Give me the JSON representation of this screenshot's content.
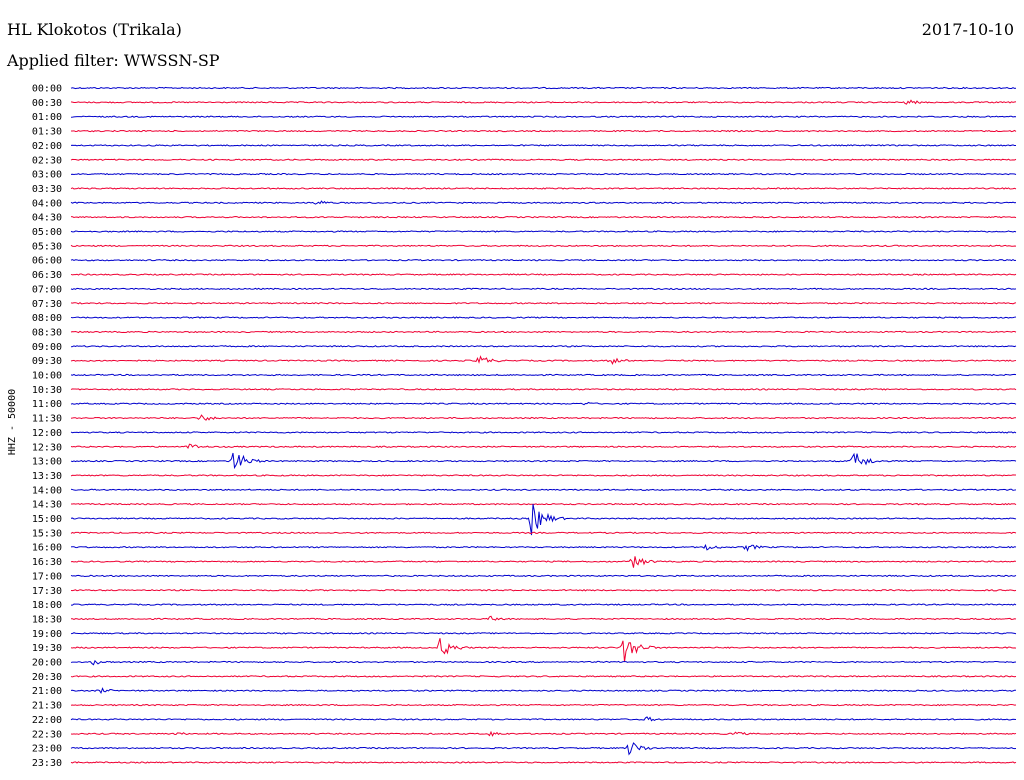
{
  "header": {
    "station": "HL Klokotos (Trikala)",
    "date": "2017-10-10",
    "filter": "Applied filter: WWSSN-SP"
  },
  "chart_data": {
    "type": "line",
    "title": "HL Klokotos (Trikala)",
    "ylabel": "HHZ - 50000",
    "colors": {
      "blue": "#0000cc",
      "red": "#ee0033"
    },
    "row_labels": [
      "00:00",
      "00:30",
      "01:00",
      "01:30",
      "02:00",
      "02:30",
      "03:00",
      "03:30",
      "04:00",
      "04:30",
      "05:00",
      "05:30",
      "06:00",
      "06:30",
      "07:00",
      "07:30",
      "08:00",
      "08:30",
      "09:00",
      "09:30",
      "10:00",
      "10:30",
      "11:00",
      "11:30",
      "12:00",
      "12:30",
      "13:00",
      "13:30",
      "14:00",
      "14:30",
      "15:00",
      "15:30",
      "16:00",
      "16:30",
      "17:00",
      "17:30",
      "18:00",
      "18:30",
      "19:00",
      "19:30",
      "20:00",
      "20:30",
      "21:00",
      "21:30",
      "22:00",
      "22:30",
      "23:00",
      "23:30"
    ],
    "row_colors": [
      "blue",
      "red",
      "blue",
      "red",
      "blue",
      "red",
      "blue",
      "red",
      "blue",
      "red",
      "blue",
      "red",
      "blue",
      "red",
      "blue",
      "red",
      "blue",
      "red",
      "blue",
      "red",
      "blue",
      "red",
      "blue",
      "red",
      "blue",
      "red",
      "blue",
      "red",
      "blue",
      "red",
      "blue",
      "red",
      "blue",
      "red",
      "blue",
      "red",
      "blue",
      "red",
      "blue",
      "red",
      "blue",
      "red",
      "blue",
      "red",
      "blue",
      "red",
      "blue",
      "red"
    ],
    "events": [
      {
        "row": "00:30",
        "minute": 26.5,
        "amplitude": 3
      },
      {
        "row": "04:00",
        "minute": 7.8,
        "amplitude": 3
      },
      {
        "row": "09:30",
        "minute": 12.9,
        "amplitude": 6
      },
      {
        "row": "09:30",
        "minute": 17.1,
        "amplitude": 4
      },
      {
        "row": "11:00",
        "minute": 16.3,
        "amplitude": 2
      },
      {
        "row": "11:30",
        "minute": 4.1,
        "amplitude": 4
      },
      {
        "row": "12:30",
        "minute": 3.7,
        "amplitude": 4
      },
      {
        "row": "13:00",
        "minute": 5.1,
        "amplitude": 13
      },
      {
        "row": "13:00",
        "minute": 24.8,
        "amplitude": 11
      },
      {
        "row": "15:00",
        "minute": 14.6,
        "amplitude": 17
      },
      {
        "row": "16:00",
        "minute": 20.1,
        "amplitude": 4
      },
      {
        "row": "16:00",
        "minute": 21.4,
        "amplitude": 4
      },
      {
        "row": "16:30",
        "minute": 17.8,
        "amplitude": 7
      },
      {
        "row": "18:30",
        "minute": 13.3,
        "amplitude": 3
      },
      {
        "row": "19:30",
        "minute": 11.7,
        "amplitude": 10
      },
      {
        "row": "19:30",
        "minute": 17.5,
        "amplitude": 17
      },
      {
        "row": "20:00",
        "minute": 0.7,
        "amplitude": 3
      },
      {
        "row": "21:00",
        "minute": 0.9,
        "amplitude": 3
      },
      {
        "row": "22:00",
        "minute": 18.2,
        "amplitude": 3
      },
      {
        "row": "22:30",
        "minute": 3.3,
        "amplitude": 2
      },
      {
        "row": "22:30",
        "minute": 13.3,
        "amplitude": 3
      },
      {
        "row": "22:30",
        "minute": 21.0,
        "amplitude": 3
      },
      {
        "row": "23:00",
        "minute": 17.7,
        "amplitude": 8
      }
    ]
  }
}
